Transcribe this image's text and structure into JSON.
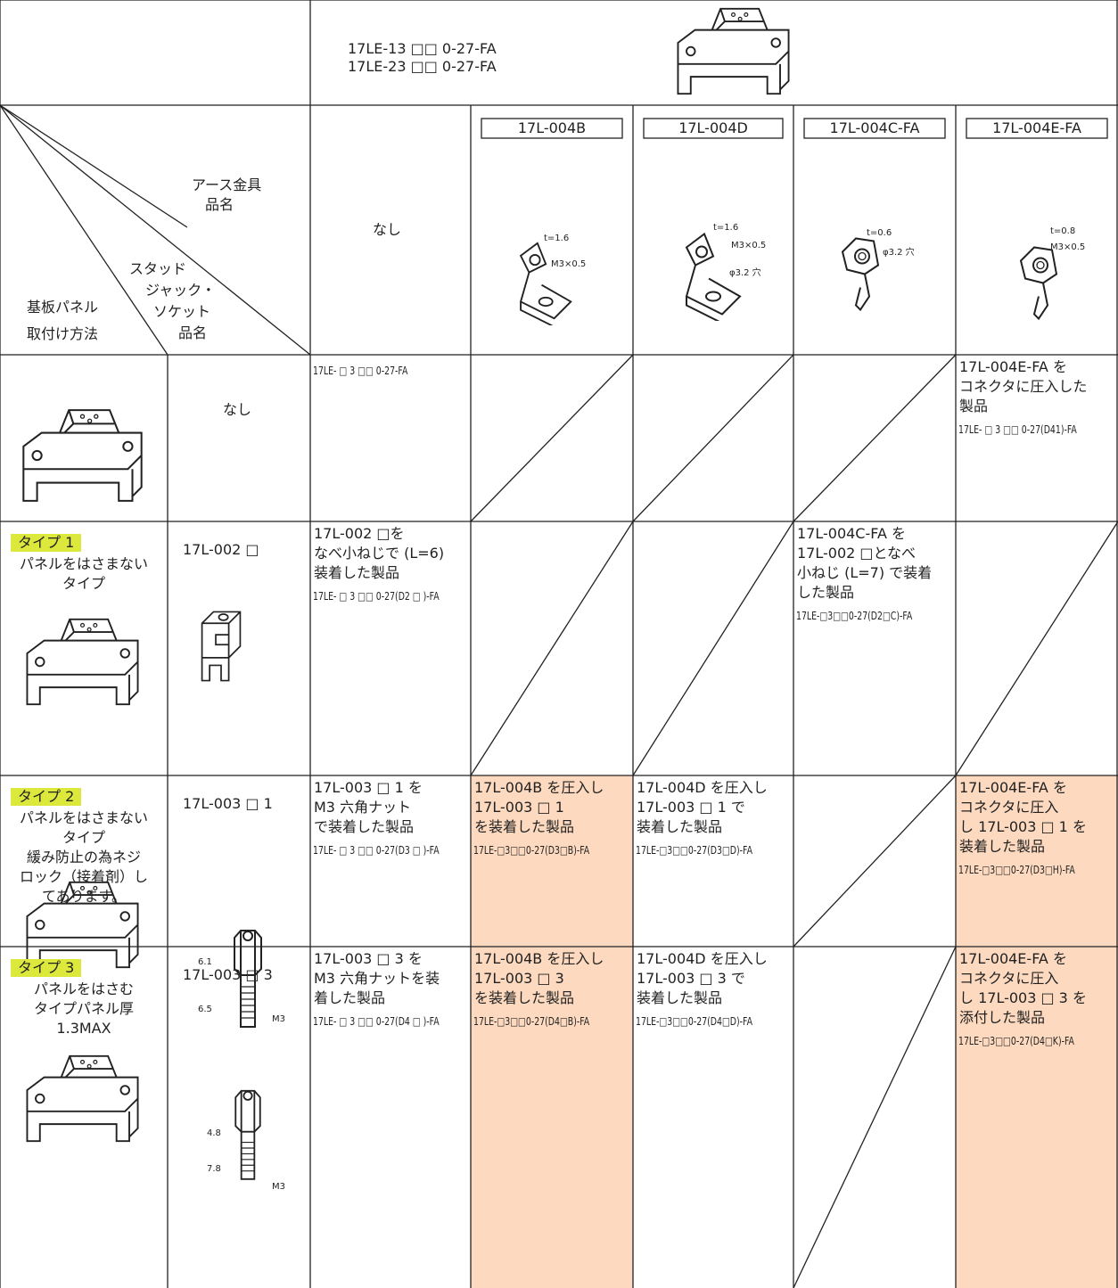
{
  "header": {
    "connector_lines": [
      "17LE-13 □□ 0-27-FA",
      "17LE-23 □□ 0-27-FA"
    ]
  },
  "corner": {
    "earth_label": [
      "アース金具",
      "品名"
    ],
    "stud_label": [
      "スタッド",
      "ジャック・",
      "ソケット",
      "品名"
    ],
    "panel_label": [
      "基板パネル",
      "取付け方法"
    ]
  },
  "columns": [
    {
      "label": "なし"
    },
    {
      "part": "17L-004B",
      "dims": [
        "t=1.6",
        "M3×0.5"
      ]
    },
    {
      "part": "17L-004D",
      "dims": [
        "t=1.6",
        "M3×0.5",
        "φ3.2 穴"
      ]
    },
    {
      "part": "17L-004C-FA",
      "dims": [
        "t=0.6",
        "φ3.2 穴"
      ]
    },
    {
      "part": "17L-004E-FA",
      "dims": [
        "t=0.8",
        "M3×0.5"
      ]
    }
  ],
  "type_color": "#dce83c",
  "rows": [
    {
      "stud": "なし",
      "cells": [
        {
          "code": "17LE- □ 3 □□ 0-27-FA"
        },
        null,
        null,
        null,
        {
          "lines": [
            "17L-004E-FA を",
            "コネクタに圧入した",
            "製品"
          ],
          "code": "17LE- □ 3 □□ 0-27(D41)-FA"
        }
      ]
    },
    {
      "type": "タイプ 1",
      "desc": [
        "パネルをはさまない",
        "タイプ"
      ],
      "stud": "17L-002 □",
      "cells": [
        {
          "lines": [
            "17L-002 □を",
            "なべ小ねじで (L=6)",
            "装着した製品"
          ],
          "code": "17LE- □ 3 □□ 0-27(D2 □ )-FA"
        },
        null,
        null,
        {
          "lines": [
            "17L-004C-FA を",
            "17L-002 □となべ",
            "小ねじ (L=7) で装着",
            "した製品"
          ],
          "code": "17LE-□3□□0-27(D2□C)-FA"
        },
        null
      ]
    },
    {
      "type": "タイプ 2",
      "desc": [
        "パネルをはさまない",
        "タイプ",
        "緩み防止の為ネジ",
        "ロック（接着剤）し",
        "てあります。"
      ],
      "stud": "17L-003 □ 1",
      "stud_dims": [
        "6.1",
        "6.5",
        "M3"
      ],
      "cells": [
        {
          "lines": [
            "17L-003 □ 1 を",
            "M3 六角ナット",
            "で装着した製品"
          ],
          "code": "17LE- □ 3 □□ 0-27(D3 □ )-FA"
        },
        {
          "lines": [
            "17L-004B を圧入し",
            "17L-003 □ 1",
            "を装着した製品"
          ],
          "code": "17LE-□3□□0-27(D3□B)-FA",
          "fill": "#fcd9bf"
        },
        {
          "lines": [
            "17L-004D を圧入し",
            "17L-003 □ 1 で",
            "装着した製品"
          ],
          "code": "17LE-□3□□0-27(D3□D)-FA"
        },
        null,
        {
          "lines": [
            "17L-004E-FA を",
            "コネクタに圧入",
            "し 17L-003 □ 1 を",
            "装着した製品"
          ],
          "code": "17LE-□3□□0-27(D3□H)-FA",
          "fill": "#fcd9bf"
        }
      ]
    },
    {
      "type": "タイプ 3",
      "desc": [
        "パネルをはさむ",
        "タイプパネル厚",
        "1.3MAX"
      ],
      "stud": "17L-003 □ 3",
      "stud_dims": [
        "4.8",
        "7.8",
        "M3"
      ],
      "cells": [
        {
          "lines": [
            "17L-003 □ 3 を",
            "M3 六角ナットを装",
            "着した製品"
          ],
          "code": "17LE- □ 3 □□ 0-27(D4 □ )-FA"
        },
        {
          "lines": [
            "17L-004B を圧入し",
            "17L-003 □ 3",
            "を装着した製品"
          ],
          "code": "17LE-□3□□0-27(D4□B)-FA",
          "fill": "#fcd9bf"
        },
        {
          "lines": [
            "17L-004D を圧入し",
            "17L-003 □ 3 で",
            "装着した製品"
          ],
          "code": "17LE-□3□□0-27(D4□D)-FA"
        },
        null,
        {
          "lines": [
            "17L-004E-FA を",
            "コネクタに圧入",
            "し 17L-003 □ 3 を",
            "添付した製品"
          ],
          "code": "17LE-□3□□0-27(D4□K)-FA",
          "fill": "#fcd9bf"
        }
      ]
    }
  ]
}
